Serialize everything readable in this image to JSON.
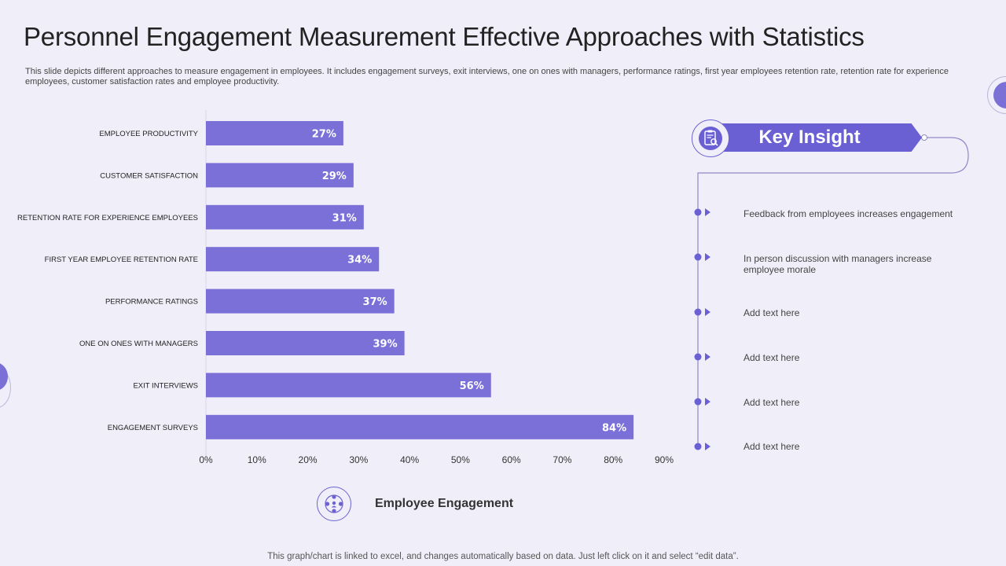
{
  "header": {
    "title": "Personnel Engagement Measurement Effective Approaches with Statistics",
    "subtitle": "This slide depicts different approaches to measure engagement in employees. It includes engagement surveys, exit interviews, one on ones with managers, performance ratings, first year employees retention rate, retention rate for experience employees, customer satisfaction rates and employee productivity."
  },
  "chart_data": {
    "type": "bar",
    "orientation": "horizontal",
    "categories": [
      "EMPLOYEE PRODUCTIVITY",
      "CUSTOMER SATISFACTION",
      "RETENTION RATE FOR EXPERIENCE EMPLOYEES",
      "FIRST YEAR EMPLOYEE RETENTION RATE",
      "PERFORMANCE RATINGS",
      "ONE ON ONES WITH MANAGERS",
      "EXIT INTERVIEWS",
      "ENGAGEMENT SURVEYS"
    ],
    "values": [
      27,
      29,
      31,
      34,
      37,
      39,
      56,
      84
    ],
    "value_labels": [
      "27%",
      "29%",
      "31%",
      "34%",
      "37%",
      "39%",
      "56%",
      "84%"
    ],
    "xlim": [
      0,
      90
    ],
    "xticks": [
      "0%",
      "10%",
      "20%",
      "30%",
      "40%",
      "50%",
      "60%",
      "70%",
      "80%",
      "90%"
    ],
    "series_name": "Employee Engagement",
    "bar_color": "#7b70d8",
    "grid": false,
    "legend": "bottom"
  },
  "legend": {
    "icon": "people-network-icon",
    "label": "Employee Engagement"
  },
  "key_insight": {
    "title": "Key Insight",
    "icon": "clipboard-search-icon",
    "accent_color": "#6a5fd3",
    "items": [
      "Feedback from employees increases engagement",
      "In person discussion with managers increase employee morale",
      "Add text here",
      "Add text here",
      "Add text here",
      "Add text here"
    ]
  },
  "footer": {
    "note": "This graph/chart is linked to excel,  and changes automatically based on data. Just left click on it and select “edit data”."
  }
}
